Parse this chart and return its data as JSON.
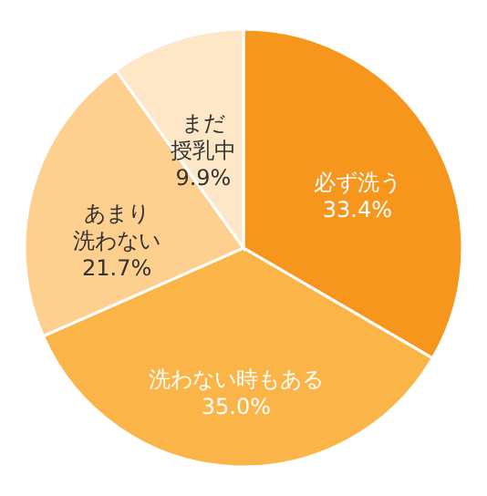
{
  "chart_data": {
    "type": "pie",
    "categories": [
      "必ず洗う",
      "洗わない時もある",
      "あまり洗わない",
      "まだ授乳中"
    ],
    "value_labels": [
      "33.4%",
      "35.0%",
      "21.7%",
      "9.9%"
    ],
    "values": [
      33.4,
      35.0,
      21.7,
      9.9
    ],
    "colors": [
      "#f7961d",
      "#fbb447",
      "#fdd08f",
      "#fee7c6"
    ],
    "legend": false
  }
}
